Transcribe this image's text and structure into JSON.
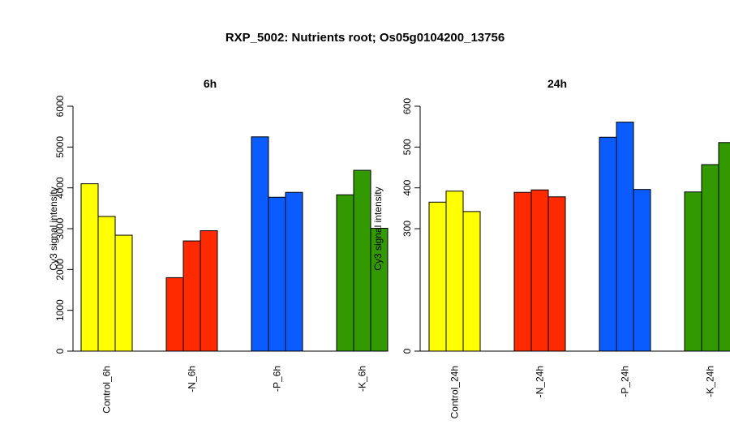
{
  "title": "RXP_5002: Nutrients root; Os05g0104200_13756",
  "chart_data": [
    {
      "type": "bar",
      "title": "6h",
      "ylabel": "Cy3 signal intensity",
      "ylim": [
        0,
        6000
      ],
      "yticks": [
        0,
        1000,
        2000,
        3000,
        4000,
        5000,
        6000
      ],
      "groups": [
        {
          "label": "Control_6h",
          "color": "#ffff00",
          "values": [
            4100,
            3300,
            2840
          ]
        },
        {
          "label": "-N_6h",
          "color": "#ff2a00",
          "values": [
            1800,
            2700,
            2950
          ]
        },
        {
          "label": "-P_6h",
          "color": "#0a5cff",
          "values": [
            5250,
            3770,
            3890
          ]
        },
        {
          "label": "-K_6h",
          "color": "#339900",
          "values": [
            3830,
            4430,
            3010
          ]
        }
      ]
    },
    {
      "type": "bar",
      "title": "24h",
      "ylabel": "Cy3 signal intensity",
      "ylim": [
        0,
        600
      ],
      "yticks": [
        0,
        300,
        400,
        500,
        600
      ],
      "groups": [
        {
          "label": "Control_24h",
          "color": "#ffff00",
          "values": [
            365,
            392,
            342
          ]
        },
        {
          "label": "-N_24h",
          "color": "#ff2a00",
          "values": [
            389,
            395,
            378
          ]
        },
        {
          "label": "-P_24h",
          "color": "#0a5cff",
          "values": [
            524,
            561,
            396
          ]
        },
        {
          "label": "-K_24h",
          "color": "#339900",
          "values": [
            390,
            457,
            511
          ]
        }
      ]
    }
  ]
}
